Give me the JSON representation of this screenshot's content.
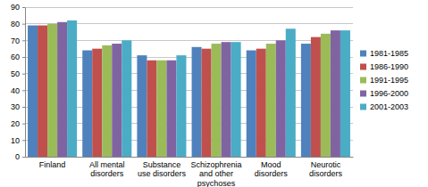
{
  "chart_data": {
    "type": "bar",
    "categories": [
      "Finland",
      "All mental disorders",
      "Substance use disorders",
      "Schizophrenia and other psychoses",
      "Mood disorders",
      "Neurotic disorders"
    ],
    "series": [
      {
        "name": "1981-1985",
        "color": "#4f81bd",
        "values": [
          79,
          64,
          61,
          66,
          64,
          68
        ]
      },
      {
        "name": "1986-1990",
        "color": "#c0504d",
        "values": [
          79,
          65,
          58,
          65,
          65,
          72
        ]
      },
      {
        "name": "1991-1995",
        "color": "#9bbb59",
        "values": [
          80,
          67,
          58,
          68,
          68,
          74
        ]
      },
      {
        "name": "1996-2000",
        "color": "#8064a2",
        "values": [
          81,
          68,
          58,
          69,
          70,
          76
        ]
      },
      {
        "name": "2001-2003",
        "color": "#4bacc6",
        "values": [
          82,
          70,
          61,
          69,
          77,
          76
        ]
      }
    ],
    "ylim": [
      0,
      90
    ],
    "yticks": [
      0,
      10,
      20,
      30,
      40,
      50,
      60,
      70,
      80,
      90
    ],
    "grid": true,
    "legend": "right"
  }
}
